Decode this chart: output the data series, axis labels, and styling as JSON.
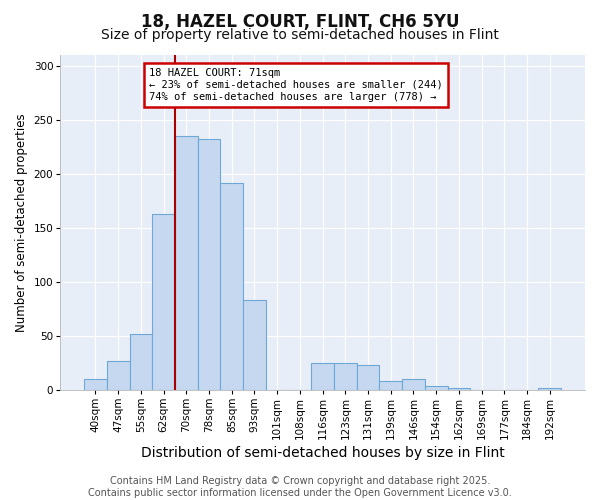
{
  "title": "18, HAZEL COURT, FLINT, CH6 5YU",
  "subtitle": "Size of property relative to semi-detached houses in Flint",
  "xlabel": "Distribution of semi-detached houses by size in Flint",
  "ylabel": "Number of semi-detached properties",
  "categories": [
    "40sqm",
    "47sqm",
    "55sqm",
    "62sqm",
    "70sqm",
    "78sqm",
    "85sqm",
    "93sqm",
    "101sqm",
    "108sqm",
    "116sqm",
    "123sqm",
    "131sqm",
    "139sqm",
    "146sqm",
    "154sqm",
    "162sqm",
    "169sqm",
    "177sqm",
    "184sqm",
    "192sqm"
  ],
  "values": [
    10,
    27,
    52,
    163,
    235,
    232,
    192,
    83,
    0,
    0,
    25,
    25,
    23,
    8,
    10,
    4,
    2,
    0,
    0,
    0,
    2
  ],
  "bar_color": "#c5d8f0",
  "bar_edge_color": "#6ea8d8",
  "highlight_index": 4,
  "highlight_line_color": "#aa0000",
  "annotation_text": "18 HAZEL COURT: 71sqm\n← 23% of semi-detached houses are smaller (244)\n74% of semi-detached houses are larger (778) →",
  "annotation_box_color": "#cc0000",
  "ylim": [
    0,
    310
  ],
  "yticks": [
    0,
    50,
    100,
    150,
    200,
    250,
    300
  ],
  "background_color": "#e8eef7",
  "grid_color": "#ffffff",
  "fig_background": "#ffffff",
  "footer_text": "Contains HM Land Registry data © Crown copyright and database right 2025.\nContains public sector information licensed under the Open Government Licence v3.0.",
  "title_fontsize": 12,
  "subtitle_fontsize": 10,
  "xlabel_fontsize": 10,
  "ylabel_fontsize": 8.5,
  "tick_fontsize": 7.5,
  "footer_fontsize": 7
}
